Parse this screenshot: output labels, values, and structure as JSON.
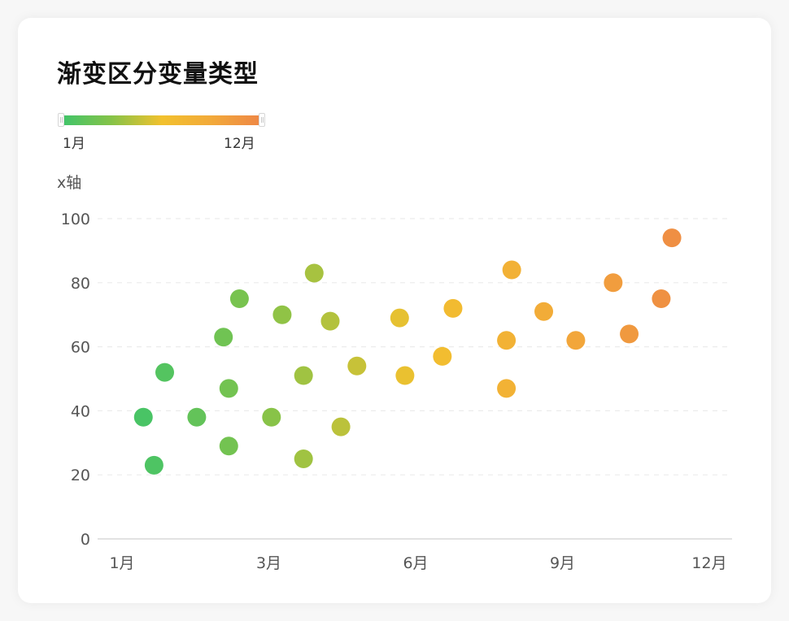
{
  "card": {
    "title": "渐变区分变量类型"
  },
  "legend": {
    "min_label": "1月",
    "max_label": "12月",
    "gradient_colors": [
      "#3FC46A",
      "#86C348",
      "#F2C12E",
      "#F2A93A",
      "#EE8646"
    ]
  },
  "axis": {
    "y_title": "x轴"
  },
  "chart_data": {
    "type": "scatter",
    "title": "渐变区分变量类型",
    "xlabel": "",
    "ylabel": "x轴",
    "x_ticks": [
      "1月",
      "3月",
      "6月",
      "9月",
      "12月"
    ],
    "x_tick_values": [
      1,
      3.75,
      6.5,
      9.25,
      12
    ],
    "y_ticks": [
      0,
      20,
      40,
      60,
      80,
      100
    ],
    "xlim": [
      1,
      12
    ],
    "ylim": [
      0,
      100
    ],
    "grid": "horizontal dashed",
    "legend": {
      "type": "continuous-gradient",
      "position": "top-left",
      "range": [
        "1月",
        "12月"
      ]
    },
    "color_encoding": "x value mapped to green→yellow→orange gradient",
    "points": [
      {
        "x": 1.4,
        "y": 38
      },
      {
        "x": 1.6,
        "y": 23
      },
      {
        "x": 1.8,
        "y": 52
      },
      {
        "x": 2.4,
        "y": 38
      },
      {
        "x": 2.9,
        "y": 63
      },
      {
        "x": 3.0,
        "y": 47
      },
      {
        "x": 3.0,
        "y": 29
      },
      {
        "x": 3.2,
        "y": 75
      },
      {
        "x": 3.8,
        "y": 38
      },
      {
        "x": 4.0,
        "y": 70
      },
      {
        "x": 4.4,
        "y": 51
      },
      {
        "x": 4.4,
        "y": 25
      },
      {
        "x": 4.6,
        "y": 83
      },
      {
        "x": 4.9,
        "y": 68
      },
      {
        "x": 5.1,
        "y": 35
      },
      {
        "x": 5.4,
        "y": 54
      },
      {
        "x": 6.2,
        "y": 69
      },
      {
        "x": 6.3,
        "y": 51
      },
      {
        "x": 7.0,
        "y": 57
      },
      {
        "x": 7.2,
        "y": 72
      },
      {
        "x": 8.2,
        "y": 62
      },
      {
        "x": 8.2,
        "y": 47
      },
      {
        "x": 8.3,
        "y": 84
      },
      {
        "x": 8.9,
        "y": 71
      },
      {
        "x": 9.5,
        "y": 62
      },
      {
        "x": 10.2,
        "y": 80
      },
      {
        "x": 10.5,
        "y": 64
      },
      {
        "x": 11.1,
        "y": 75
      },
      {
        "x": 11.3,
        "y": 94
      }
    ]
  }
}
